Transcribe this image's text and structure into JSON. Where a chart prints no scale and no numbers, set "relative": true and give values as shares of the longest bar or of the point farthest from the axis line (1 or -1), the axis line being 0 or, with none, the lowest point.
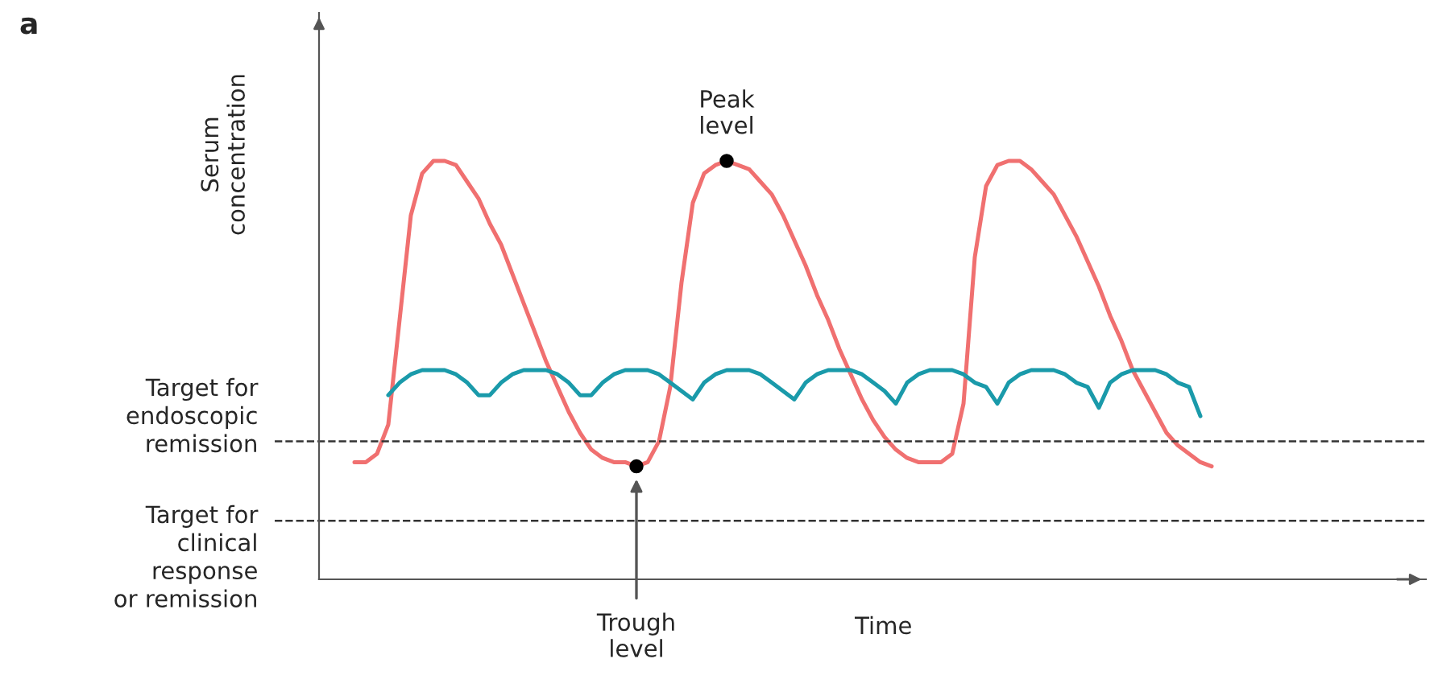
{
  "chart_data": {
    "type": "line",
    "relative": true,
    "xlabel": "Time",
    "ylabel": "Serum\nconcentration",
    "categories": [
      null,
      null,
      null,
      null,
      null,
      null,
      null,
      null,
      null,
      null,
      null,
      null,
      null,
      null,
      null,
      null,
      null,
      null,
      null,
      null,
      null,
      null,
      null,
      null,
      null,
      null,
      null,
      null,
      null,
      null,
      null,
      null,
      null,
      null,
      null,
      null,
      null,
      null,
      null,
      null,
      null,
      null,
      null,
      null,
      null,
      null,
      null,
      null,
      null,
      null,
      null,
      null,
      null,
      null,
      null,
      null,
      null,
      null,
      null,
      null,
      null,
      null,
      null,
      null,
      null,
      null,
      null,
      null,
      null,
      null,
      null,
      null,
      null,
      null,
      null,
      null,
      null
    ],
    "series": [
      {
        "color": "#f07070",
        "values": [
          0.28,
          0.28,
          0.3,
          0.37,
          0.62,
          0.87,
          0.97,
          1.0,
          1.0,
          0.99,
          0.95,
          0.91,
          0.85,
          0.8,
          0.73,
          0.66,
          0.59,
          0.52,
          0.46,
          0.4,
          0.35,
          0.31,
          0.29,
          0.28,
          0.28,
          0.27,
          0.28,
          0.33,
          0.46,
          0.71,
          0.9,
          0.97,
          0.99,
          1.0,
          0.99,
          0.98,
          0.95,
          0.92,
          0.87,
          0.81,
          0.75,
          0.68,
          0.62,
          0.55,
          0.49,
          0.43,
          0.38,
          0.34,
          0.31,
          0.29,
          0.28,
          0.28,
          0.28,
          0.3,
          0.42,
          0.77,
          0.94,
          0.99,
          1.0,
          1.0,
          0.98,
          0.95,
          0.92,
          0.87,
          0.82,
          0.76,
          0.7,
          0.63,
          0.57,
          0.5,
          0.45,
          0.4,
          0.35,
          0.32,
          0.3,
          0.28,
          0.27
        ]
      },
      {
        "color": "#1a9aaa",
        "values": [
          null,
          null,
          null,
          0.44,
          0.47,
          0.49,
          0.5,
          0.5,
          0.5,
          0.49,
          0.47,
          0.44,
          0.44,
          0.47,
          0.49,
          0.5,
          0.5,
          0.5,
          0.49,
          0.47,
          0.44,
          0.44,
          0.47,
          0.49,
          0.5,
          0.5,
          0.5,
          0.49,
          0.47,
          0.45,
          0.43,
          0.47,
          0.49,
          0.5,
          0.5,
          0.5,
          0.49,
          0.47,
          0.45,
          0.43,
          0.47,
          0.49,
          0.5,
          0.5,
          0.5,
          0.49,
          0.47,
          0.45,
          0.42,
          0.47,
          0.49,
          0.5,
          0.5,
          0.5,
          0.49,
          0.47,
          0.46,
          0.42,
          0.47,
          0.49,
          0.5,
          0.5,
          0.5,
          0.49,
          0.47,
          0.46,
          0.41,
          0.47,
          0.49,
          0.5,
          0.5,
          0.5,
          0.49,
          0.47,
          0.46,
          0.39,
          null
        ]
      }
    ],
    "ref_lines": [
      {
        "axis": "y",
        "value": 0.33,
        "label": "Target for\nendoscopic\nremission",
        "color": "#333333",
        "line_style": "dashed"
      },
      {
        "axis": "y",
        "value": 0.14,
        "label": "Target for\nclinical\nresponse\nor remission",
        "color": "#333333",
        "line_style": "dashed"
      }
    ],
    "annotations": [
      "a",
      {
        "text": "Peak\nlevel",
        "y": 1.0
      },
      "Trough\nlevel"
    ],
    "grid": false,
    "legend": false
  }
}
